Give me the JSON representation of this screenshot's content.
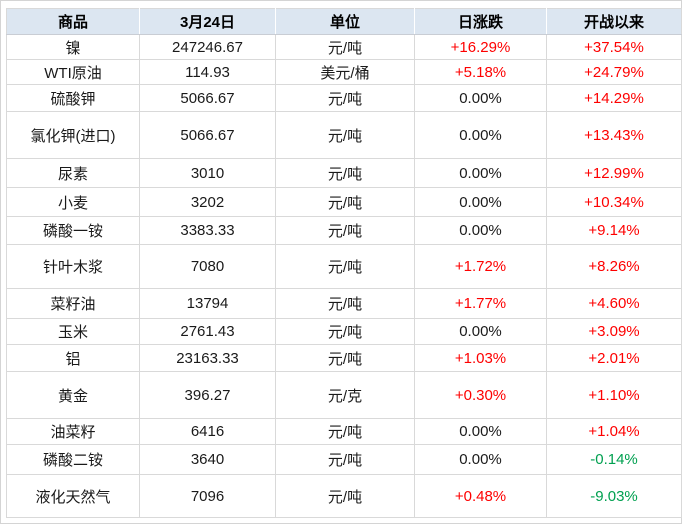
{
  "chart_data": {
    "type": "table",
    "columns": [
      "商品",
      "3月24日",
      "单位",
      "日涨跌",
      "开战以来"
    ],
    "rows": [
      [
        "镍",
        "247246.67",
        "元/吨",
        "+16.29%",
        "+37.54%"
      ],
      [
        "WTI原油",
        "114.93",
        "美元/桶",
        "+5.18%",
        "+24.79%"
      ],
      [
        "硫酸钾",
        "5066.67",
        "元/吨",
        "0.00%",
        "+14.29%"
      ],
      [
        "氯化钾(进口)",
        "5066.67",
        "元/吨",
        "0.00%",
        "+13.43%"
      ],
      [
        "尿素",
        "3010",
        "元/吨",
        "0.00%",
        "+12.99%"
      ],
      [
        "小麦",
        "3202",
        "元/吨",
        "0.00%",
        "+10.34%"
      ],
      [
        "磷酸一铵",
        "3383.33",
        "元/吨",
        "0.00%",
        "+9.14%"
      ],
      [
        "针叶木浆",
        "7080",
        "元/吨",
        "+1.72%",
        "+8.26%"
      ],
      [
        "菜籽油",
        "13794",
        "元/吨",
        "+1.77%",
        "+4.60%"
      ],
      [
        "玉米",
        "2761.43",
        "元/吨",
        "0.00%",
        "+3.09%"
      ],
      [
        "铝",
        "23163.33",
        "元/吨",
        "+1.03%",
        "+2.01%"
      ],
      [
        "黄金",
        "396.27",
        "元/克",
        "+0.30%",
        "+1.10%"
      ],
      [
        "油菜籽",
        "6416",
        "元/吨",
        "0.00%",
        "+1.04%"
      ],
      [
        "磷酸二铵",
        "3640",
        "元/吨",
        "0.00%",
        "-0.14%"
      ],
      [
        "液化天然气",
        "7096",
        "元/吨",
        "+0.48%",
        "-9.03%"
      ]
    ]
  },
  "colors": {
    "positive_change": "#fe0000",
    "negative_change": "#00a050",
    "header_bg": "#dce6f1",
    "grid_line": "#d9d9d9",
    "text": "#1a1a1a"
  }
}
